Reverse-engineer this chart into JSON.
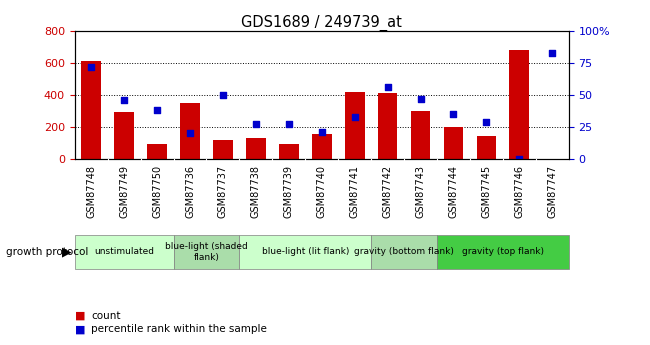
{
  "title": "GDS1689 / 249739_at",
  "samples": [
    "GSM87748",
    "GSM87749",
    "GSM87750",
    "GSM87736",
    "GSM87737",
    "GSM87738",
    "GSM87739",
    "GSM87740",
    "GSM87741",
    "GSM87742",
    "GSM87743",
    "GSM87744",
    "GSM87745",
    "GSM87746",
    "GSM87747"
  ],
  "counts": [
    610,
    295,
    90,
    350,
    115,
    130,
    90,
    155,
    420,
    410,
    300,
    200,
    145,
    680,
    0
  ],
  "percentiles": [
    72,
    46,
    38,
    20,
    50,
    27,
    27,
    21,
    33,
    56,
    47,
    35,
    29,
    0,
    83
  ],
  "bar_color": "#cc0000",
  "dot_color": "#0000cc",
  "ylim_left": [
    0,
    800
  ],
  "ylim_right": [
    0,
    100
  ],
  "yticks_left": [
    0,
    200,
    400,
    600,
    800
  ],
  "yticks_right": [
    0,
    25,
    50,
    75,
    100
  ],
  "yticklabels_right": [
    "0",
    "25",
    "50",
    "75",
    "100%"
  ],
  "groups": [
    {
      "label": "unstimulated",
      "start": 0,
      "end": 3,
      "color": "#ccffcc"
    },
    {
      "label": "blue-light (shaded\nflank)",
      "start": 3,
      "end": 5,
      "color": "#aaddaa"
    },
    {
      "label": "blue-light (lit flank)",
      "start": 5,
      "end": 9,
      "color": "#ccffcc"
    },
    {
      "label": "gravity (bottom flank)",
      "start": 9,
      "end": 11,
      "color": "#aaddaa"
    },
    {
      "label": "gravity (top flank)",
      "start": 11,
      "end": 15,
      "color": "#44cc44"
    }
  ],
  "growth_protocol_label": "growth protocol",
  "legend_count_label": "count",
  "legend_percentile_label": "percentile rank within the sample",
  "ylabel_left_color": "#cc0000",
  "ylabel_right_color": "#0000cc",
  "xtick_bg_color": "#cccccc",
  "plot_bg_color": "#ffffff"
}
